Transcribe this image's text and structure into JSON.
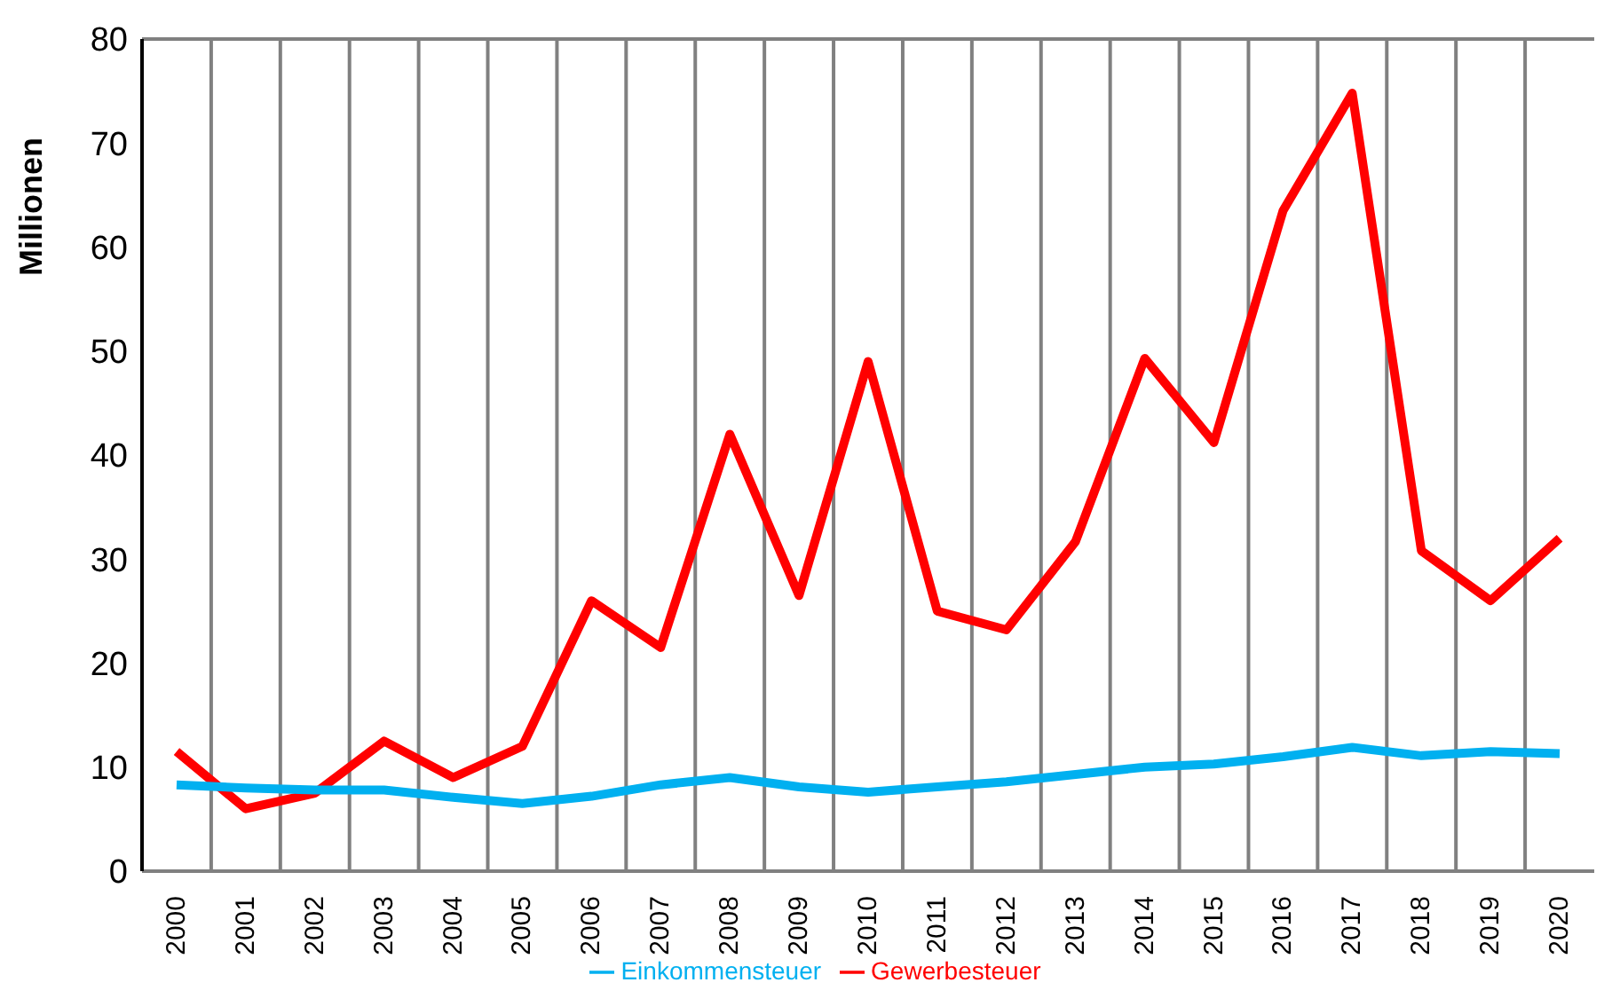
{
  "chart_data": {
    "type": "line",
    "ylabel": "Millionen",
    "categories": [
      "2000",
      "2001",
      "2002",
      "2003",
      "2004",
      "2005",
      "2006",
      "2007",
      "2008",
      "2009",
      "2010",
      "2011",
      "2012",
      "2013",
      "2014",
      "2015",
      "2016",
      "2017",
      "2018",
      "2019",
      "2020"
    ],
    "series": [
      {
        "name": "Gewerbesteuer",
        "color": "#ff0000",
        "values": [
          11.5,
          6,
          7.5,
          12.5,
          9,
          12,
          26,
          21.5,
          42,
          26.5,
          49,
          25,
          23.2,
          31.7,
          49.3,
          41.2,
          63.5,
          74.8,
          30.8,
          26,
          32
        ]
      },
      {
        "name": "Einkommensteuer",
        "color": "#00b0f0",
        "values": [
          8.3,
          8,
          7.8,
          7.8,
          7.1,
          6.5,
          7.2,
          8.3,
          9,
          8.1,
          7.6,
          8.1,
          8.6,
          9.3,
          10,
          10.3,
          11,
          11.9,
          11.1,
          11.5,
          11.3
        ]
      }
    ],
    "ylim": [
      0,
      80
    ],
    "yticks": [
      0,
      10,
      20,
      30,
      40,
      50,
      60,
      70,
      80
    ],
    "grid": true,
    "legend": "bottom",
    "marker": "none",
    "line_style": "solid"
  }
}
